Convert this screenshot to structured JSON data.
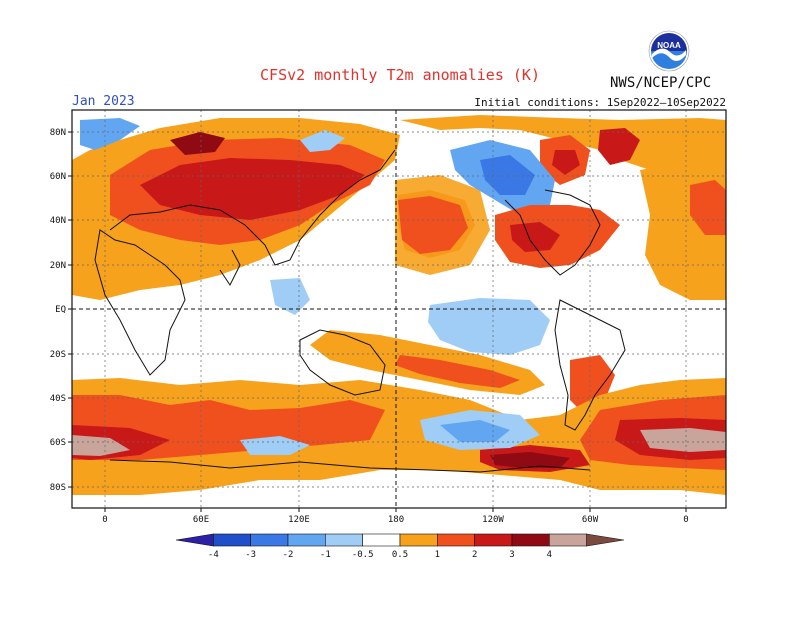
{
  "title": "CFSv2 monthly T2m anomalies (K)",
  "agency": "NWS/NCEP/CPC",
  "logo_text": "NOAA",
  "valid_month": "Jan 2023",
  "initial_conditions": "Initial conditions: 1Sep2022–10Sep2022",
  "lat_labels": [
    "80N",
    "60N",
    "40N",
    "20N",
    "EQ",
    "20S",
    "40S",
    "60S",
    "80S"
  ],
  "lon_labels": [
    "0",
    "60E",
    "120E",
    "180",
    "120W",
    "60W",
    "0"
  ],
  "colorbar": {
    "labels": [
      "-4",
      "-3",
      "-2",
      "-1",
      "-0.5",
      "0.5",
      "1",
      "2",
      "3",
      "4"
    ],
    "colors": [
      "#2b20a6",
      "#1f4fc9",
      "#3a78e6",
      "#62a6f2",
      "#9fcdf6",
      "#ffffff",
      "#f7a21c",
      "#f0501e",
      "#c81818",
      "#900a14",
      "#c8a49a",
      "#7a4a3c"
    ]
  },
  "anomaly_colors": {
    "weak_warm": "#f7a21c",
    "warm": "#f0501e",
    "strong_warm": "#c81818",
    "very_strong_warm": "#900a14",
    "extreme_warm": "#c8a49a",
    "weak_cold": "#9fcdf6",
    "cold": "#62a6f2",
    "strong_cold": "#3a78e6"
  }
}
